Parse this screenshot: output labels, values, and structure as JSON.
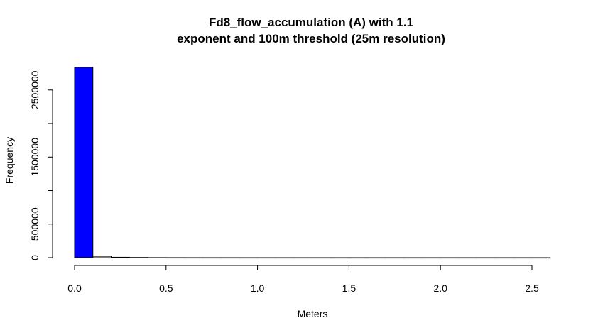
{
  "chart_data": {
    "type": "bar",
    "title_lines": [
      "Fd8_flow_accumulation (A) with 1.1",
      "exponent and 100m threshold (25m resolution)"
    ],
    "xlabel": "Meters",
    "ylabel": "Frequency",
    "xlim": [
      0.0,
      2.6
    ],
    "ylim": [
      0,
      2900000
    ],
    "x_ticks": [
      0.0,
      0.5,
      1.0,
      1.5,
      2.0,
      2.5
    ],
    "x_tick_labels": [
      "0.0",
      "0.5",
      "1.0",
      "1.5",
      "2.0",
      "2.5"
    ],
    "y_ticks": [
      0,
      500000,
      1500000,
      2500000
    ],
    "y_tick_labels": [
      "0",
      "500000",
      "1500000",
      "2500000"
    ],
    "bin_width": 0.1,
    "bins": [
      {
        "x0": 0.0,
        "x1": 0.1,
        "count": 2840000
      },
      {
        "x0": 0.1,
        "x1": 0.2,
        "count": 20000
      },
      {
        "x0": 0.2,
        "x1": 0.3,
        "count": 6000
      },
      {
        "x0": 0.3,
        "x1": 0.4,
        "count": 3000
      },
      {
        "x0": 0.4,
        "x1": 0.5,
        "count": 1000
      },
      {
        "x0": 0.5,
        "x1": 0.6,
        "count": 500
      },
      {
        "x0": 0.6,
        "x1": 0.7,
        "count": 300
      },
      {
        "x0": 0.7,
        "x1": 0.8,
        "count": 200
      },
      {
        "x0": 0.8,
        "x1": 0.9,
        "count": 150
      },
      {
        "x0": 0.9,
        "x1": 1.0,
        "count": 100
      },
      {
        "x0": 1.0,
        "x1": 1.1,
        "count": 80
      },
      {
        "x0": 1.1,
        "x1": 1.2,
        "count": 60
      },
      {
        "x0": 1.2,
        "x1": 1.3,
        "count": 50
      },
      {
        "x0": 1.3,
        "x1": 1.4,
        "count": 40
      },
      {
        "x0": 1.4,
        "x1": 1.5,
        "count": 30
      },
      {
        "x0": 1.5,
        "x1": 1.6,
        "count": 25
      },
      {
        "x0": 1.6,
        "x1": 1.7,
        "count": 20
      },
      {
        "x0": 1.7,
        "x1": 1.8,
        "count": 15
      },
      {
        "x0": 1.8,
        "x1": 1.9,
        "count": 10
      },
      {
        "x0": 1.9,
        "x1": 2.0,
        "count": 8
      },
      {
        "x0": 2.0,
        "x1": 2.1,
        "count": 6
      },
      {
        "x0": 2.1,
        "x1": 2.2,
        "count": 5
      },
      {
        "x0": 2.2,
        "x1": 2.3,
        "count": 4
      },
      {
        "x0": 2.3,
        "x1": 2.4,
        "count": 3
      },
      {
        "x0": 2.4,
        "x1": 2.5,
        "count": 2
      },
      {
        "x0": 2.5,
        "x1": 2.6,
        "count": 1
      }
    ],
    "first_bar_color": "#0000ff",
    "bar_color": "#ffffff",
    "bar_border_color": "#000000",
    "grid": false,
    "legend": "none"
  }
}
